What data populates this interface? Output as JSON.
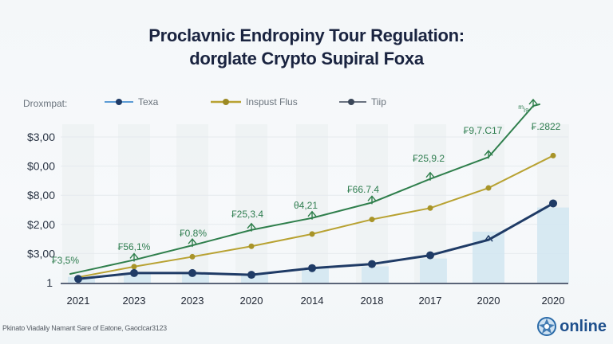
{
  "chart_data": {
    "type": "line",
    "title": "Proclavnic Endropiny Tour Regulation:",
    "subtitle": "dorglate Crypto Supiral Foxa",
    "legend_title": "Droxmpat:",
    "legend_position": "top",
    "categories": [
      "2021",
      "2023",
      "2023",
      "2020",
      "2014",
      "2018",
      "2017",
      "2020",
      "2020"
    ],
    "y_tick_labels": [
      "1",
      "$3,00",
      "$2,00",
      "$8,00",
      "$0,00",
      "$3,00"
    ],
    "y_tick_index": [
      0,
      1,
      2,
      3,
      4,
      5
    ],
    "ylim": [
      0,
      5.4
    ],
    "grid": true,
    "xlabel": "",
    "ylabel": "",
    "series": [
      {
        "name": "Texa",
        "color": "#1f3b66",
        "marker": "circle",
        "values": [
          0.13,
          0.33,
          0.33,
          0.27,
          0.5,
          0.64,
          0.94,
          1.47,
          2.72
        ]
      },
      {
        "name": "Inspust Flus",
        "color": "#b8a232",
        "marker": "small-circle",
        "values": [
          0.19,
          0.55,
          0.89,
          1.25,
          1.67,
          2.17,
          2.56,
          3.25,
          4.36
        ]
      },
      {
        "name": "Tiip",
        "color": "#2f7f4c",
        "marker": "arrow",
        "values": [
          0.36,
          0.78,
          1.28,
          1.81,
          2.22,
          2.75,
          3.56,
          4.31,
          6.17
        ]
      }
    ],
    "background_bars": {
      "color": "#cfe6f1",
      "values": [
        0.2,
        0.33,
        0.33,
        0.28,
        0.5,
        0.56,
        0.83,
        1.75,
        2.58
      ]
    },
    "data_labels": [
      "₣3,5%",
      "₣56,1%",
      "₣0.8%",
      "₣25,3.4",
      "θ4,21",
      "₣66.7.4",
      "₣25,9.2",
      "₣9,7.C17",
      "₣.2822"
    ],
    "extra_annotation": "ᵐᵢ₉"
  },
  "footer": {
    "note": "Pkinato Viadaliy Namant Sare of Eatone, Gaoclcar3123",
    "brand": "online"
  }
}
